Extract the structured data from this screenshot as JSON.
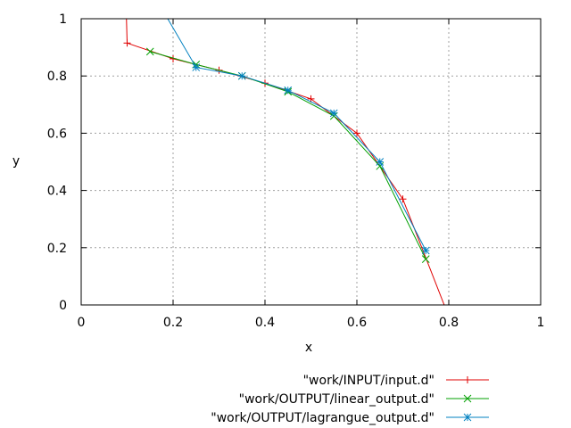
{
  "chart_data": {
    "type": "line",
    "title": "",
    "xlabel": "x",
    "ylabel": "y",
    "xlim": [
      0,
      1
    ],
    "ylim": [
      0,
      1
    ],
    "x_ticks": [
      0,
      0.2,
      0.4,
      0.6,
      0.8,
      1
    ],
    "y_ticks": [
      0,
      0.2,
      0.4,
      0.6,
      0.8,
      1
    ],
    "x_tick_labels": [
      "0",
      "0.2",
      "0.4",
      "0.6",
      "0.8",
      "1"
    ],
    "y_tick_labels": [
      "0",
      "0.2",
      "0.4",
      "0.6",
      "0.8",
      "1"
    ],
    "grid": true,
    "legend_position": "bottom-right, below plot",
    "series": [
      {
        "name": "\"work/INPUT/input.d\"",
        "color": "#e00000",
        "marker": "plus",
        "x": [
          0.095,
          0.1,
          0.2,
          0.3,
          0.4,
          0.5,
          0.6,
          0.7,
          0.79
        ],
        "y": [
          1.2,
          0.915,
          0.86,
          0.82,
          0.775,
          0.72,
          0.6,
          0.37,
          0.0
        ],
        "marked": [
          false,
          true,
          true,
          true,
          true,
          true,
          true,
          true,
          false
        ]
      },
      {
        "name": "\"work/OUTPUT/linear_output.d\"",
        "color": "#00a000",
        "marker": "cross",
        "x": [
          0.15,
          0.25,
          0.35,
          0.45,
          0.55,
          0.65,
          0.75
        ],
        "y": [
          0.885,
          0.84,
          0.8,
          0.745,
          0.66,
          0.485,
          0.16
        ],
        "marked": [
          true,
          true,
          true,
          true,
          true,
          true,
          true
        ]
      },
      {
        "name": "\"work/OUTPUT/lagrangue_output.d\"",
        "color": "#0080c0",
        "marker": "star",
        "x": [
          0.17,
          0.25,
          0.35,
          0.45,
          0.55,
          0.65,
          0.75
        ],
        "y": [
          1.05,
          0.83,
          0.8,
          0.75,
          0.67,
          0.5,
          0.19
        ],
        "marked": [
          false,
          true,
          true,
          true,
          true,
          true,
          true
        ]
      }
    ]
  }
}
